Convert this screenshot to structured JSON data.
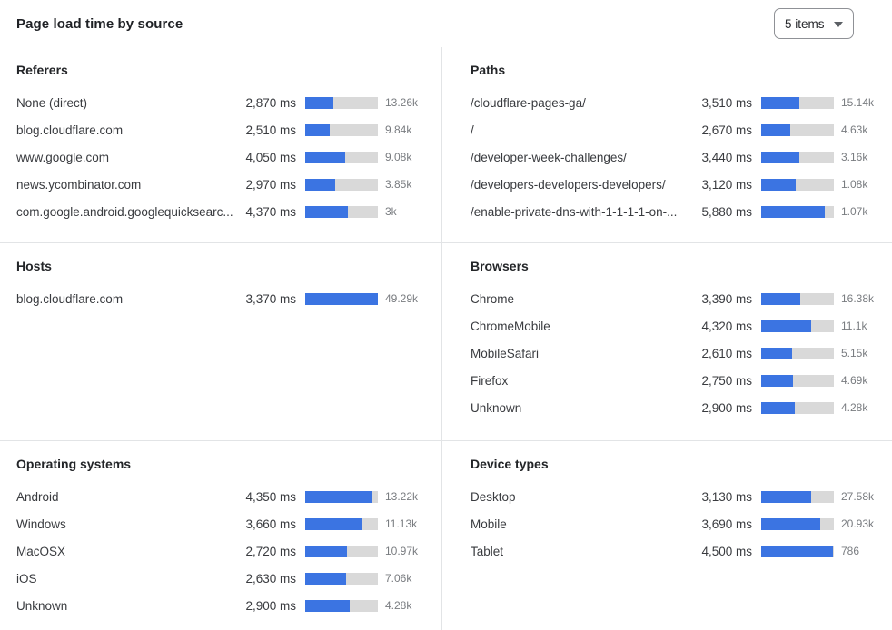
{
  "header": {
    "title": "Page load time by source",
    "items_dropdown": {
      "value": "5 items"
    }
  },
  "colors": {
    "bar_fill": "#3b74e2",
    "bar_track": "#d9d9d9",
    "divider": "#e2e4e6",
    "count_text": "#797c80"
  },
  "chart_data": [
    {
      "type": "bar",
      "title": "Referers",
      "value_unit": "ms",
      "rows": [
        {
          "label": "None (direct)",
          "ms": 2870,
          "ms_display": "2,870 ms",
          "count": "13.26k",
          "bar_pct": 39
        },
        {
          "label": "blog.cloudflare.com",
          "ms": 2510,
          "ms_display": "2,510 ms",
          "count": "9.84k",
          "bar_pct": 34
        },
        {
          "label": "www.google.com",
          "ms": 4050,
          "ms_display": "4,050 ms",
          "count": "9.08k",
          "bar_pct": 55
        },
        {
          "label": "news.ycombinator.com",
          "ms": 2970,
          "ms_display": "2,970 ms",
          "count": "3.85k",
          "bar_pct": 41
        },
        {
          "label": "com.google.android.googlequicksearc...",
          "ms": 4370,
          "ms_display": "4,370 ms",
          "count": "3k",
          "bar_pct": 59
        }
      ]
    },
    {
      "type": "bar",
      "title": "Paths",
      "value_unit": "ms",
      "rows": [
        {
          "label": "/cloudflare-pages-ga/",
          "ms": 3510,
          "ms_display": "3,510 ms",
          "count": "15.14k",
          "bar_pct": 53
        },
        {
          "label": "/",
          "ms": 2670,
          "ms_display": "2,670 ms",
          "count": "4.63k",
          "bar_pct": 40
        },
        {
          "label": "/developer-week-challenges/",
          "ms": 3440,
          "ms_display": "3,440 ms",
          "count": "3.16k",
          "bar_pct": 52
        },
        {
          "label": "/developers-developers-developers/",
          "ms": 3120,
          "ms_display": "3,120 ms",
          "count": "1.08k",
          "bar_pct": 47
        },
        {
          "label": "/enable-private-dns-with-1-1-1-1-on-...",
          "ms": 5880,
          "ms_display": "5,880 ms",
          "count": "1.07k",
          "bar_pct": 88
        }
      ]
    },
    {
      "type": "bar",
      "title": "Hosts",
      "value_unit": "ms",
      "rows": [
        {
          "label": "blog.cloudflare.com",
          "ms": 3370,
          "ms_display": "3,370 ms",
          "count": "49.29k",
          "bar_pct": 100
        }
      ]
    },
    {
      "type": "bar",
      "title": "Browsers",
      "value_unit": "ms",
      "rows": [
        {
          "label": "Chrome",
          "ms": 3390,
          "ms_display": "3,390 ms",
          "count": "16.38k",
          "bar_pct": 54
        },
        {
          "label": "ChromeMobile",
          "ms": 4320,
          "ms_display": "4,320 ms",
          "count": "11.1k",
          "bar_pct": 69
        },
        {
          "label": "MobileSafari",
          "ms": 2610,
          "ms_display": "2,610 ms",
          "count": "5.15k",
          "bar_pct": 42
        },
        {
          "label": "Firefox",
          "ms": 2750,
          "ms_display": "2,750 ms",
          "count": "4.69k",
          "bar_pct": 44
        },
        {
          "label": "Unknown",
          "ms": 2900,
          "ms_display": "2,900 ms",
          "count": "4.28k",
          "bar_pct": 46
        }
      ]
    },
    {
      "type": "bar",
      "title": "Operating systems",
      "value_unit": "ms",
      "rows": [
        {
          "label": "Android",
          "ms": 4350,
          "ms_display": "4,350 ms",
          "count": "13.22k",
          "bar_pct": 93
        },
        {
          "label": "Windows",
          "ms": 3660,
          "ms_display": "3,660 ms",
          "count": "11.13k",
          "bar_pct": 78
        },
        {
          "label": "MacOSX",
          "ms": 2720,
          "ms_display": "2,720 ms",
          "count": "10.97k",
          "bar_pct": 58
        },
        {
          "label": "iOS",
          "ms": 2630,
          "ms_display": "2,630 ms",
          "count": "7.06k",
          "bar_pct": 56
        },
        {
          "label": "Unknown",
          "ms": 2900,
          "ms_display": "2,900 ms",
          "count": "4.28k",
          "bar_pct": 61
        }
      ]
    },
    {
      "type": "bar",
      "title": "Device types",
      "value_unit": "ms",
      "rows": [
        {
          "label": "Desktop",
          "ms": 3130,
          "ms_display": "3,130 ms",
          "count": "27.58k",
          "bar_pct": 69
        },
        {
          "label": "Mobile",
          "ms": 3690,
          "ms_display": "3,690 ms",
          "count": "20.93k",
          "bar_pct": 81
        },
        {
          "label": "Tablet",
          "ms": 4500,
          "ms_display": "4,500 ms",
          "count": "786",
          "bar_pct": 99
        }
      ]
    }
  ]
}
